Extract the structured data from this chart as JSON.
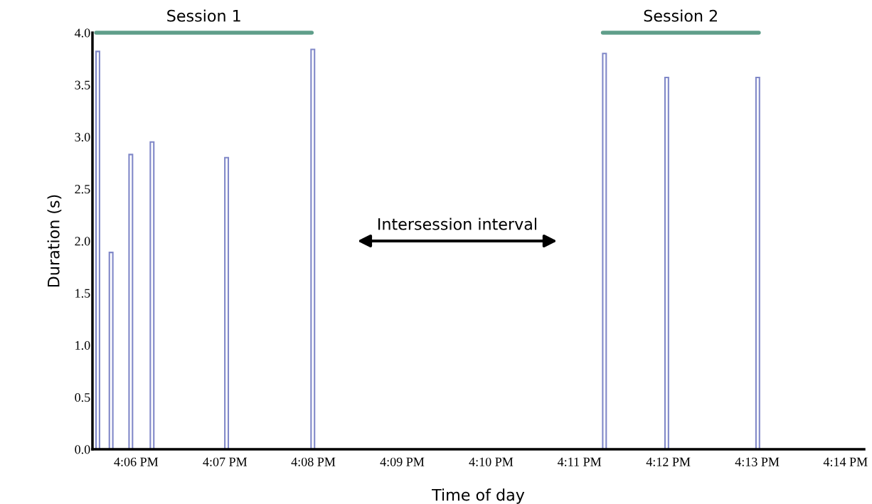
{
  "chart_data": {
    "type": "bar",
    "xlabel": "Time of day",
    "ylabel": "Duration (s)",
    "series": [
      {
        "color": "#8088c8",
        "x": [
          16.0928,
          16.0953,
          16.099,
          16.103,
          16.117,
          16.1332,
          16.188,
          16.1997,
          16.2168
        ],
        "values": [
          3.82,
          1.89,
          2.83,
          2.95,
          2.8,
          3.84,
          3.8,
          3.57,
          3.57
        ]
      },
      {
        "type": "line",
        "name": "Session 1",
        "color": "#5f9e8a",
        "x": [
          16.0925,
          16.133
        ],
        "values": [
          4.0,
          4.0
        ]
      },
      {
        "type": "line",
        "name": "Session 2",
        "color": "#5f9e8a",
        "x": [
          16.1877,
          16.217
        ],
        "values": [
          4.0,
          4.0
        ]
      }
    ],
    "xlim": [
      16.0918,
      16.2368
    ],
    "xticks": [
      {
        "value": 16.1,
        "label": "4:06 PM"
      },
      {
        "value": 16.1167,
        "label": "4:07 PM"
      },
      {
        "value": 16.1333,
        "label": "4:08 PM"
      },
      {
        "value": 16.15,
        "label": "4:09 PM"
      },
      {
        "value": 16.1667,
        "label": "4:10 PM"
      },
      {
        "value": 16.1833,
        "label": "4:11 PM"
      },
      {
        "value": 16.2,
        "label": "4:12 PM"
      },
      {
        "value": 16.2167,
        "label": "4:13 PM"
      },
      {
        "value": 16.2333,
        "label": "4:14 PM"
      }
    ],
    "ylim": [
      0,
      4.0
    ],
    "yticks": [
      {
        "value": 0,
        "label": "0.0"
      },
      {
        "value": 0.5,
        "label": "0.5"
      },
      {
        "value": 1,
        "label": "1.0"
      },
      {
        "value": 1.5,
        "label": "1.5"
      },
      {
        "value": 2,
        "label": "2.0"
      },
      {
        "value": 2.5,
        "label": "2.5"
      },
      {
        "value": 3,
        "label": "3.0"
      },
      {
        "value": 3.5,
        "label": "3.5"
      },
      {
        "value": 4,
        "label": "4.0"
      }
    ],
    "annotations": [
      "Intersession interval"
    ],
    "grid": false,
    "legend": false
  }
}
